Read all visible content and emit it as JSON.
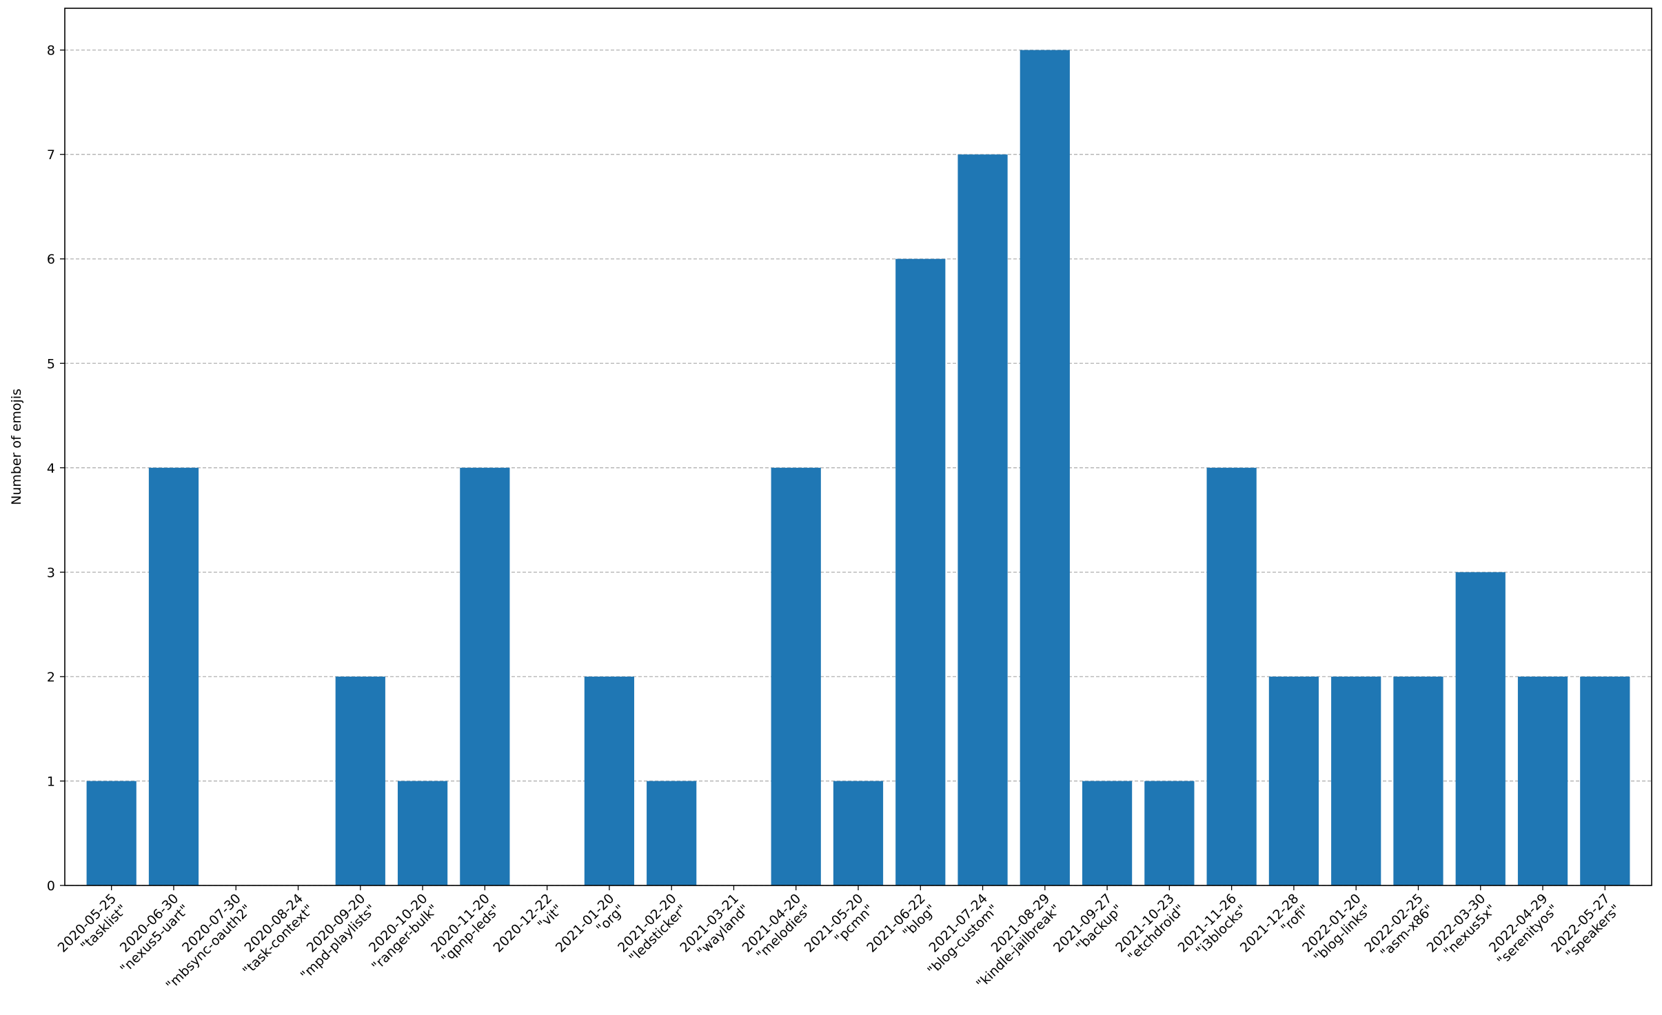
{
  "chart_data": {
    "type": "bar",
    "ylabel": "Number of emojis",
    "xlabel": "",
    "title": "",
    "ylim": [
      0,
      8.4
    ],
    "yticks": [
      0,
      1,
      2,
      3,
      4,
      5,
      6,
      7,
      8
    ],
    "grid": "y-dashed",
    "bar_color": "#1f77b4",
    "grid_color": "#b0b0b0",
    "categories": [
      {
        "date": "2020-05-25",
        "name": "\"tasklist\""
      },
      {
        "date": "2020-06-30",
        "name": "\"nexus5-uart\""
      },
      {
        "date": "2020-07-30",
        "name": "\"mbsync-oauth2\""
      },
      {
        "date": "2020-08-24",
        "name": "\"task-context\""
      },
      {
        "date": "2020-09-20",
        "name": "\"mpd-playlists\""
      },
      {
        "date": "2020-10-20",
        "name": "\"ranger-bulk\""
      },
      {
        "date": "2020-11-20",
        "name": "\"qpnp-leds\""
      },
      {
        "date": "2020-12-22",
        "name": "\"vit\""
      },
      {
        "date": "2021-01-20",
        "name": "\"org\""
      },
      {
        "date": "2021-02-20",
        "name": "\"ledsticker\""
      },
      {
        "date": "2021-03-21",
        "name": "\"wayland\""
      },
      {
        "date": "2021-04-20",
        "name": "\"melodies\""
      },
      {
        "date": "2021-05-20",
        "name": "\"pcmn\""
      },
      {
        "date": "2021-06-22",
        "name": "\"blog\""
      },
      {
        "date": "2021-07-24",
        "name": "\"blog-custom\""
      },
      {
        "date": "2021-08-29",
        "name": "\"kindle-jailbreak\""
      },
      {
        "date": "2021-09-27",
        "name": "\"backup\""
      },
      {
        "date": "2021-10-23",
        "name": "\"etchdroid\""
      },
      {
        "date": "2021-11-26",
        "name": "\"i3blocks\""
      },
      {
        "date": "2021-12-28",
        "name": "\"rofi\""
      },
      {
        "date": "2022-01-20",
        "name": "\"blog-links\""
      },
      {
        "date": "2022-02-25",
        "name": "\"asm-x86\""
      },
      {
        "date": "2022-03-30",
        "name": "\"nexus5x\""
      },
      {
        "date": "2022-04-29",
        "name": "\"serenityos\""
      },
      {
        "date": "2022-05-27",
        "name": "\"speakers\""
      }
    ],
    "values": [
      1,
      4,
      0,
      0,
      2,
      1,
      4,
      0,
      2,
      1,
      0,
      4,
      1,
      6,
      7,
      8,
      1,
      1,
      4,
      2,
      2,
      2,
      3,
      2,
      2
    ]
  }
}
